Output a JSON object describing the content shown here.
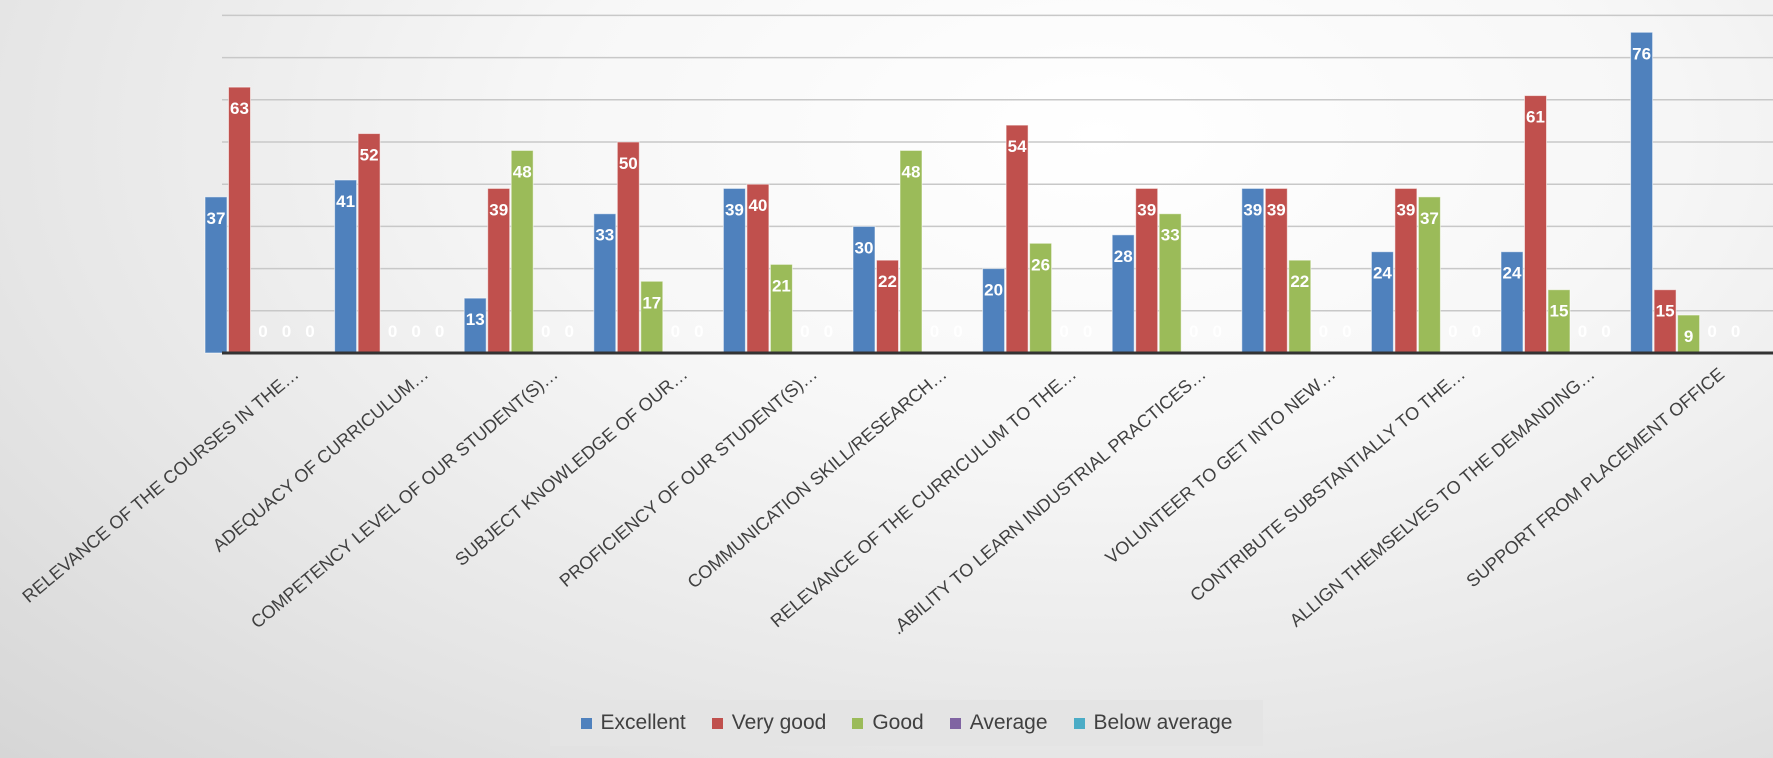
{
  "chart_data": {
    "type": "bar",
    "categories": [
      "RELEVANCE OF THE COURSES IN THE…",
      "ADEQUACY OF CURRICULUM…",
      "COMPETENCY LEVEL OF OUR STUDENT(S)…",
      "SUBJECT KNOWLEDGE OF OUR…",
      "PROFICIENCY OF OUR STUDENT(S)…",
      "COMMUNICATION SKILL/RESEARCH…",
      "RELEVANCE OF THE CURRICULUM TO THE…",
      ".ABILITY TO LEARN INDUSTRIAL PRACTICES…",
      "VOLUNTEER TO GET INTO NEW…",
      "CONTRIBUTE SUBSTANTIALLY TO THE…",
      "ALLIGN THEMSELVES TO THE DEMANDING…",
      "SUPPORT FROM PLACEMENT OFFICE"
    ],
    "series": [
      {
        "name": "Excellent",
        "color": "#4f81bd",
        "values": [
          37,
          41,
          13,
          33,
          39,
          30,
          20,
          28,
          39,
          24,
          24,
          76
        ]
      },
      {
        "name": "Very good",
        "color": "#c0504d",
        "values": [
          63,
          52,
          39,
          50,
          40,
          22,
          54,
          39,
          39,
          39,
          61,
          15
        ]
      },
      {
        "name": "Good",
        "color": "#9bbb59",
        "values": [
          0,
          0,
          48,
          17,
          21,
          48,
          26,
          33,
          22,
          37,
          15,
          9
        ]
      },
      {
        "name": "Average",
        "color": "#8064a2",
        "values": [
          0,
          0,
          0,
          0,
          0,
          0,
          0,
          0,
          0,
          0,
          0,
          0
        ]
      },
      {
        "name": "Below average",
        "color": "#4bacc6",
        "values": [
          0,
          0,
          0,
          0,
          0,
          0,
          0,
          0,
          0,
          0,
          0,
          0
        ]
      }
    ],
    "ylim": [
      0,
      80
    ],
    "grid": true,
    "data_labels": true,
    "legend": "bottom"
  }
}
